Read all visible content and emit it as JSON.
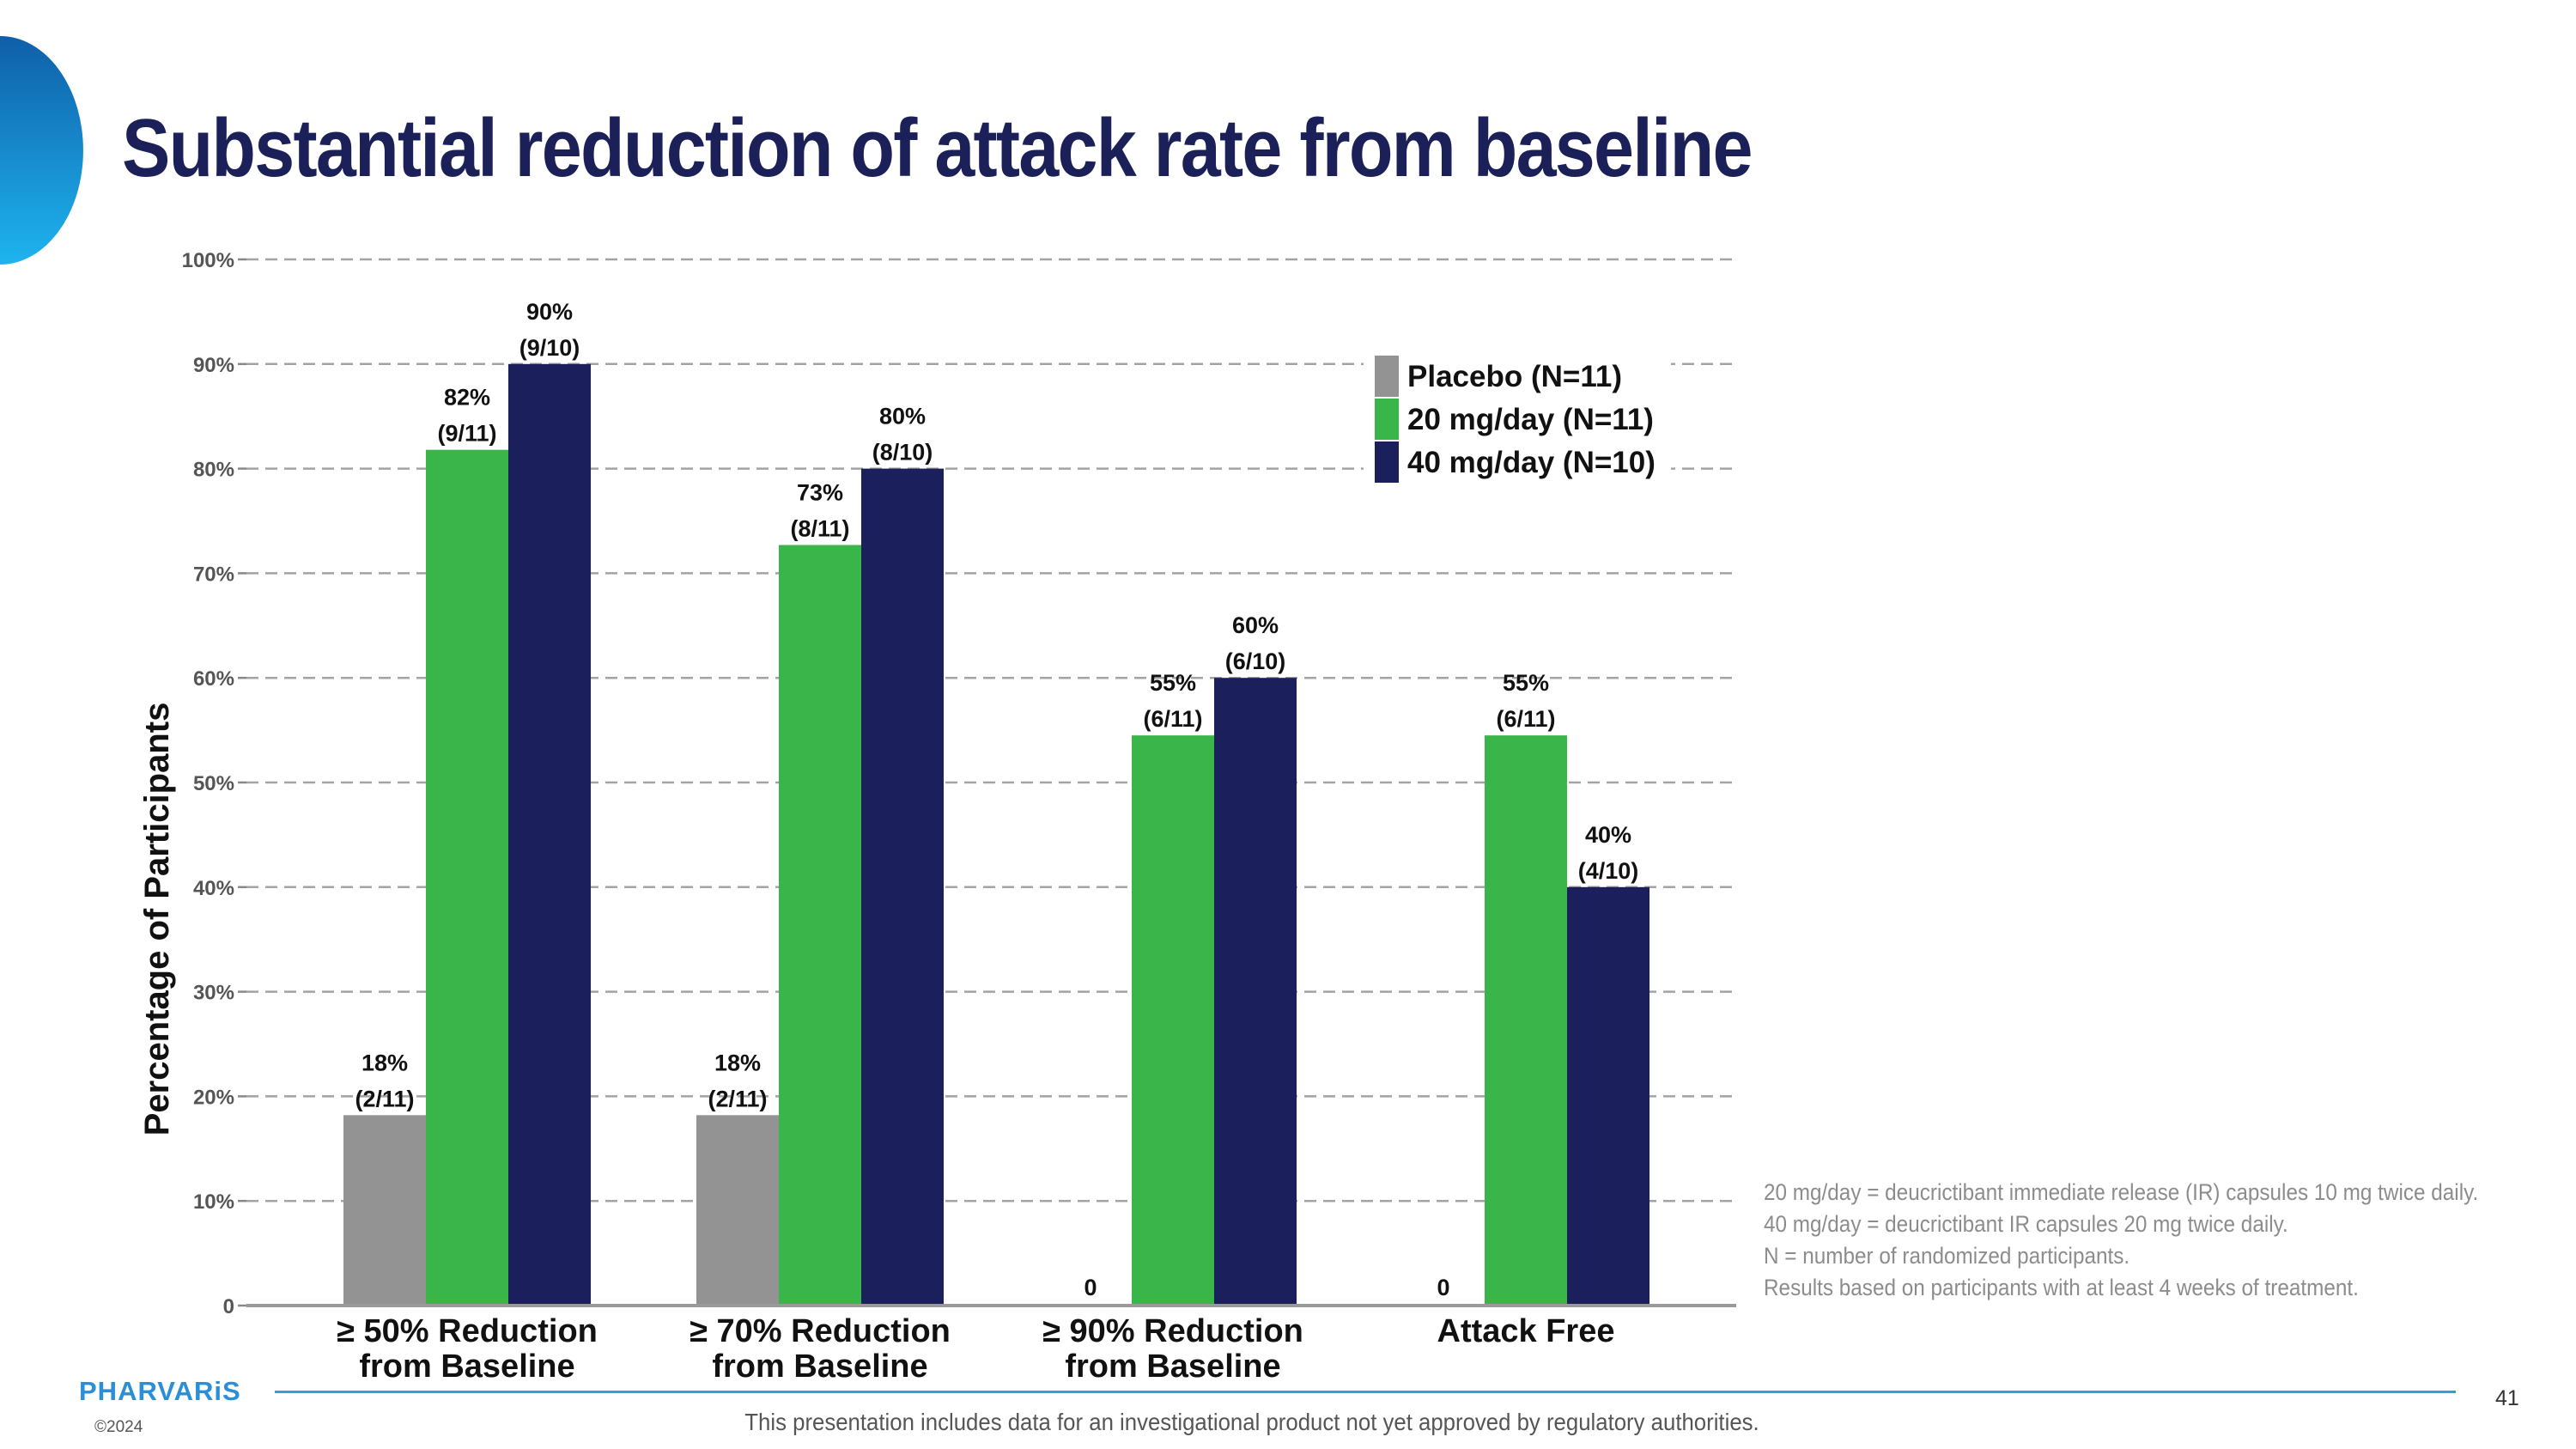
{
  "slide": {
    "title": "Substantial reduction of attack rate from baseline",
    "brand": "PHARVARiS",
    "copyright": "©2024",
    "page_number": "41",
    "disclaimer": "This presentation includes data for an investigational product not yet approved by regulatory authorities.",
    "notes": [
      "20 mg/day = deucrictibant immediate release (IR) capsules 10 mg twice daily.",
      "40 mg/day = deucrictibant IR capsules 20 mg twice daily.",
      "N = number of randomized participants.",
      "Results based on participants with at least 4 weeks of treatment."
    ],
    "colors": {
      "title": "#1b2158",
      "accent": "#2aa2dc",
      "footer_line": "#2aa2dc"
    }
  },
  "chart_data": {
    "type": "bar",
    "title": "",
    "ylabel": "Percentage of Participants",
    "xlabel": "",
    "ylim": [
      0,
      100
    ],
    "yticks": [
      "0",
      "10%",
      "20%",
      "30%",
      "40%",
      "50%",
      "60%",
      "70%",
      "80%",
      "90%",
      "100%"
    ],
    "grid": "horizontal dashed",
    "legend_position": "top-right",
    "categories": [
      [
        "≥ 50% Reduction",
        "from Baseline"
      ],
      [
        "≥ 70% Reduction",
        "from Baseline"
      ],
      [
        "≥ 90% Reduction",
        "from Baseline"
      ],
      [
        "Attack Free"
      ]
    ],
    "series": [
      {
        "name": "Placebo (N=11)",
        "color": "#939393",
        "values": [
          18.2,
          18.2,
          0,
          0
        ],
        "labels": [
          [
            "18%",
            "(2/11)"
          ],
          [
            "18%",
            "(2/11)"
          ],
          [
            "0"
          ],
          [
            "0"
          ]
        ]
      },
      {
        "name": "20 mg/day (N=11)",
        "color": "#39b54a",
        "values": [
          81.8,
          72.7,
          54.5,
          54.5
        ],
        "labels": [
          [
            "82%",
            "(9/11)"
          ],
          [
            "73%",
            "(8/11)"
          ],
          [
            "55%",
            "(6/11)"
          ],
          [
            "55%",
            "(6/11)"
          ]
        ]
      },
      {
        "name": "40 mg/day (N=10)",
        "color": "#1b1f5c",
        "values": [
          90,
          80,
          60,
          40
        ],
        "labels": [
          [
            "90%",
            "(9/10)"
          ],
          [
            "80%",
            "(8/10)"
          ],
          [
            "60%",
            "(6/10)"
          ],
          [
            "40%",
            "(4/10)"
          ]
        ]
      }
    ]
  }
}
